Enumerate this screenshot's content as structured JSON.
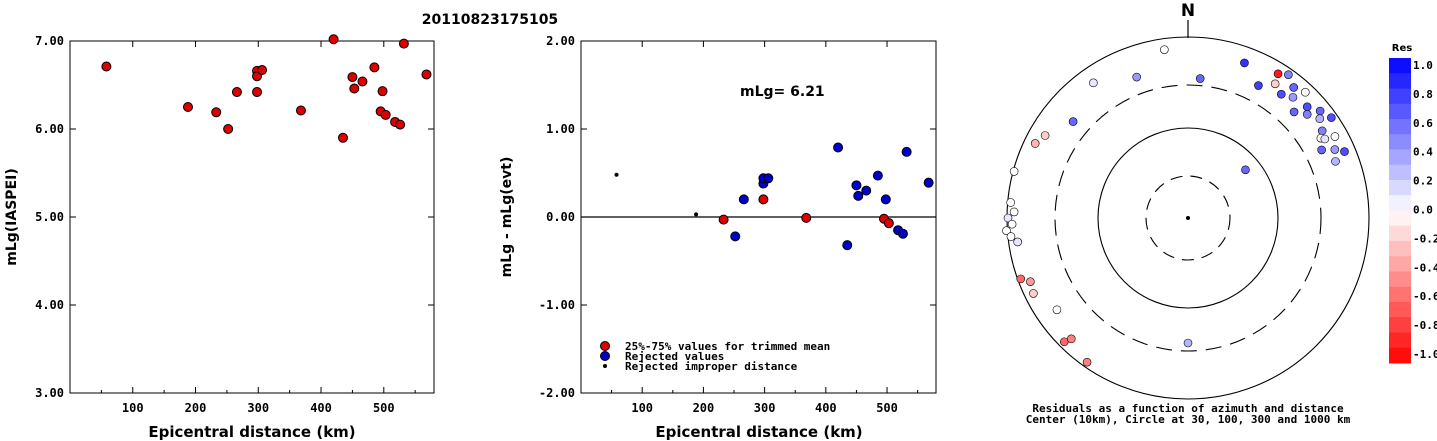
{
  "title": "20110823175105",
  "chart_data": [
    {
      "type": "scatter",
      "xlabel": "Epicentral distance (km)",
      "ylabel": "mLg(IASPEI)",
      "xlim": [
        0,
        580
      ],
      "ylim": [
        3.0,
        7.0
      ],
      "xticks": [
        "100",
        "200",
        "300",
        "400",
        "500"
      ],
      "yticks": [
        "3.00",
        "4.00",
        "5.00",
        "6.00",
        "7.00"
      ],
      "series": [
        {
          "color": "#dd0000",
          "points": [
            [
              58,
              6.71
            ],
            [
              188,
              6.25
            ],
            [
              233,
              6.19
            ],
            [
              252,
              6.0
            ],
            [
              266,
              6.42
            ],
            [
              298,
              6.66
            ],
            [
              298,
              6.6
            ],
            [
              298,
              6.42
            ],
            [
              306,
              6.67
            ],
            [
              368,
              6.21
            ],
            [
              420,
              7.02
            ],
            [
              435,
              5.9
            ],
            [
              450,
              6.59
            ],
            [
              453,
              6.46
            ],
            [
              466,
              6.54
            ],
            [
              485,
              6.7
            ],
            [
              495,
              6.2
            ],
            [
              498,
              6.43
            ],
            [
              503,
              6.16
            ],
            [
              518,
              6.08
            ],
            [
              526,
              6.05
            ],
            [
              532,
              6.97
            ],
            [
              568,
              6.62
            ]
          ]
        }
      ]
    },
    {
      "type": "scatter",
      "xlabel": "Epicentral distance (km)",
      "ylabel": "mLg - mLg(evt)",
      "xlim": [
        0,
        580
      ],
      "ylim": [
        -2.0,
        2.0
      ],
      "xticks": [
        "100",
        "200",
        "300",
        "400",
        "500"
      ],
      "yticks": [
        "-2.00",
        "-1.00",
        "0.00",
        "1.00",
        "2.00"
      ],
      "annotation": "mLg= 6.21",
      "legend": [
        "25%-75% values for trimmed mean",
        "Rejected values",
        "Rejected improper distance"
      ],
      "series": [
        {
          "color": "#dd0000",
          "points": [
            [
              233,
              -0.03
            ],
            [
              298,
              0.2
            ],
            [
              368,
              -0.01
            ],
            [
              495,
              -0.02
            ],
            [
              503,
              -0.07
            ]
          ]
        },
        {
          "color": "#0000cc",
          "points": [
            [
              252,
              -0.22
            ],
            [
              266,
              0.2
            ],
            [
              298,
              0.38
            ],
            [
              298,
              0.44
            ],
            [
              306,
              0.44
            ],
            [
              420,
              0.79
            ],
            [
              435,
              -0.32
            ],
            [
              450,
              0.36
            ],
            [
              453,
              0.24
            ],
            [
              466,
              0.3
            ],
            [
              485,
              0.47
            ],
            [
              498,
              0.2
            ],
            [
              518,
              -0.15
            ],
            [
              526,
              -0.19
            ],
            [
              532,
              0.74
            ],
            [
              568,
              0.39
            ]
          ]
        },
        {
          "color": "#000000",
          "points": [
            [
              58,
              0.48
            ],
            [
              188,
              0.03
            ]
          ]
        }
      ]
    },
    {
      "type": "scatter",
      "title": "N",
      "caption_line1": "Residuals as a function of azimuth and distance",
      "caption_line2": "Center (10km), Circle at 30, 100, 300 and 1000 km",
      "colorbar_title": "Res",
      "colorbar_labels": [
        "1.0",
        "0.8",
        "0.6",
        "0.4",
        "0.2",
        "0.0",
        "-0.2",
        "-0.4",
        "-0.6",
        "-0.8",
        "-1.0"
      ],
      "points": [
        [
          20,
          0.8
        ],
        [
          28,
          0.75
        ],
        [
          32,
          -0.9
        ],
        [
          33,
          -0.2
        ],
        [
          35,
          0.5
        ],
        [
          37,
          0.7
        ],
        [
          39,
          0.6
        ],
        [
          41,
          0.4
        ],
        [
          43,
          0.0
        ],
        [
          45,
          0.6
        ],
        [
          47,
          0.7
        ],
        [
          49,
          0.5
        ],
        [
          51,
          0.6
        ],
        [
          53,
          0.3
        ],
        [
          55,
          0.7
        ],
        [
          57,
          0.5
        ],
        [
          59,
          0.0
        ],
        [
          61,
          0.0
        ],
        [
          63,
          0.6
        ],
        [
          65,
          0.4
        ],
        [
          67,
          0.7
        ],
        [
          69,
          0.3
        ],
        [
          60,
          0.1
        ],
        [
          5,
          0.6
        ],
        [
          352,
          0.0
        ],
        [
          340,
          0.4
        ],
        [
          325,
          0.1
        ],
        [
          310,
          0.6
        ],
        [
          300,
          -0.2
        ],
        [
          296,
          -0.3
        ],
        [
          285,
          0.0
        ],
        [
          275,
          0.0
        ],
        [
          272,
          0.0
        ],
        [
          270,
          0.1
        ],
        [
          268,
          0.0
        ],
        [
          266,
          0.0
        ],
        [
          264,
          0.0
        ],
        [
          262,
          0.1
        ],
        [
          250,
          -0.6
        ],
        [
          248,
          -0.4
        ],
        [
          244,
          -0.2
        ],
        [
          235,
          0.0
        ],
        [
          225,
          -0.6
        ],
        [
          224,
          -0.5
        ],
        [
          215,
          -0.5
        ],
        [
          180,
          0.3
        ],
        [
          50,
          0.6
        ]
      ]
    }
  ]
}
